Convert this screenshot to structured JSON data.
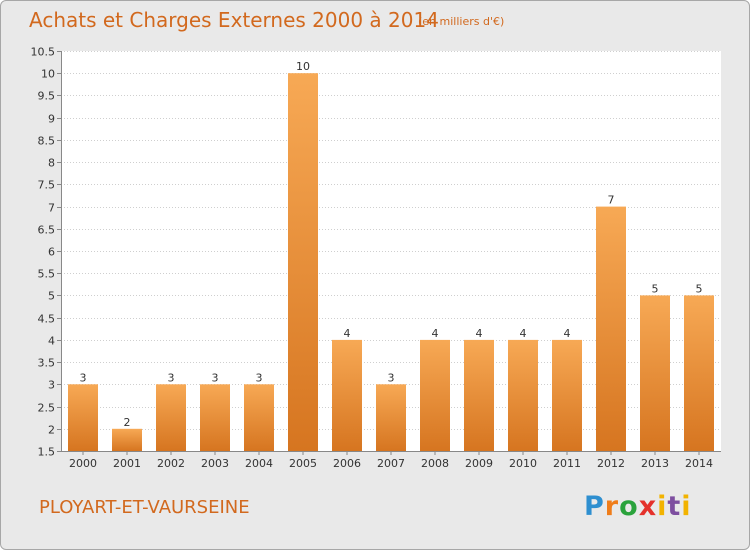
{
  "title": "Achats et Charges Externes 2000 à 2014",
  "subtitle": "(en milliers d'€)",
  "location": "PLOYART-ET-VAURSEINE",
  "logo_text": "Proxiti",
  "colors": {
    "title": "#d2691e",
    "bar_light": "#f7a955",
    "bar_dark": "#d67520",
    "background": "#e9e9e9",
    "plot_background": "#ffffff",
    "grid": "#cfcfcf"
  },
  "chart_data": {
    "type": "bar",
    "categories": [
      "2000",
      "2001",
      "2002",
      "2003",
      "2004",
      "2005",
      "2006",
      "2007",
      "2008",
      "2009",
      "2010",
      "2011",
      "2012",
      "2013",
      "2014"
    ],
    "values": [
      3,
      2,
      3,
      3,
      3,
      10,
      4,
      3,
      4,
      4,
      4,
      4,
      7,
      5,
      5
    ],
    "data_labels": [
      "3",
      "2",
      "3",
      "3",
      "3",
      "10",
      "4",
      "3",
      "4",
      "4",
      "4",
      "4",
      "7",
      "5",
      "5"
    ],
    "ylim": [
      1.5,
      10.5
    ],
    "yticks": [
      "1.5",
      "2",
      "2.5",
      "3",
      "3.5",
      "4",
      "4.5",
      "5",
      "5.5",
      "6",
      "6.5",
      "7",
      "7.5",
      "8",
      "8.5",
      "9",
      "9.5",
      "10",
      "10.5"
    ],
    "grid": "horizontal dotted",
    "xlabel": "",
    "ylabel": ""
  }
}
